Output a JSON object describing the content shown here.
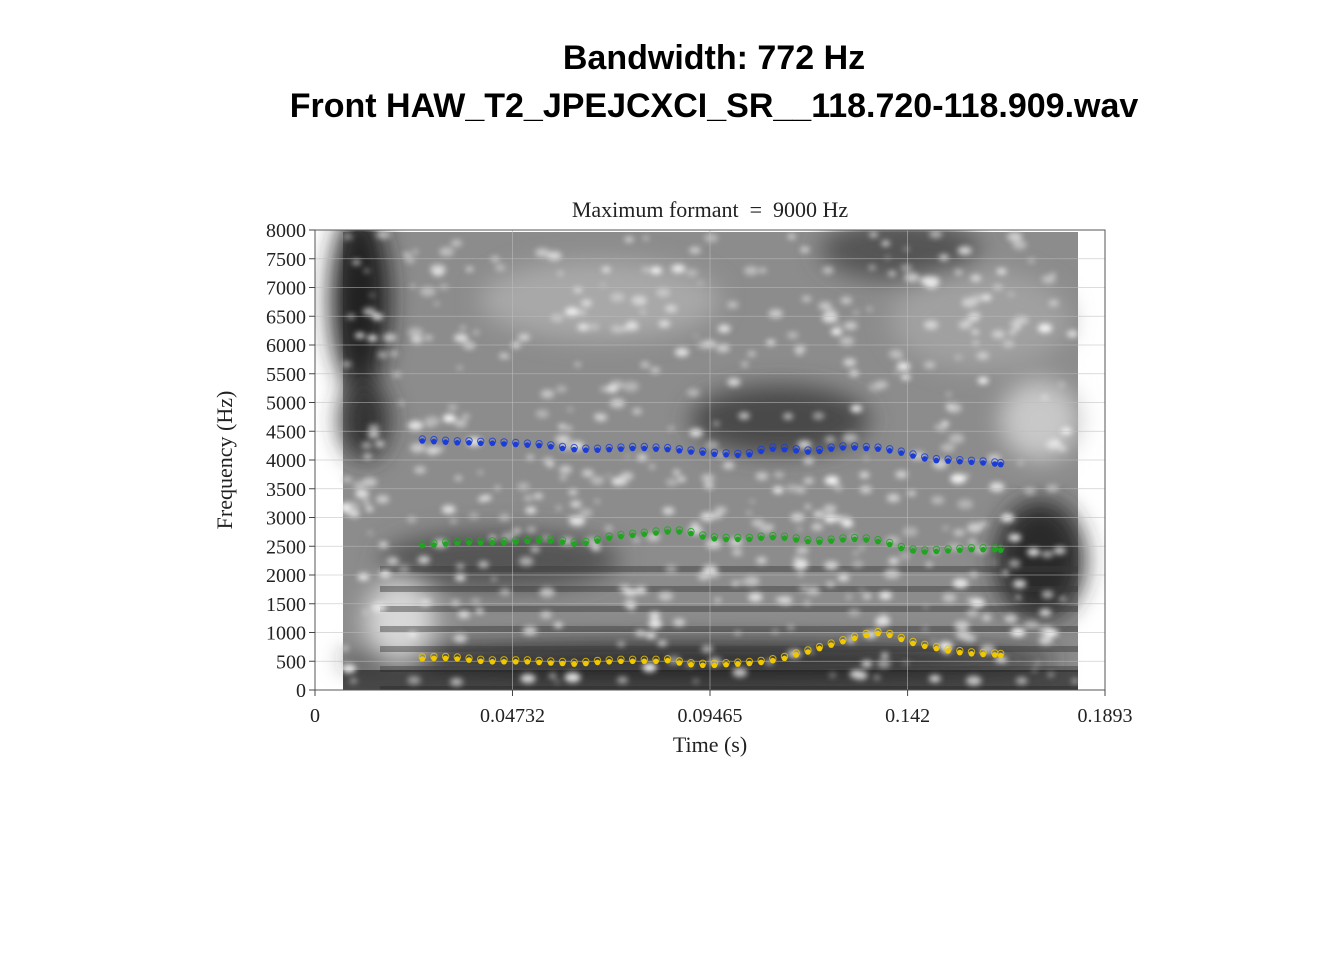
{
  "header": {
    "title_line1": "Bandwidth: 772 Hz",
    "title_line2": "Front HAW_T2_JPEJCXCI_SR__118.720-118.909.wav"
  },
  "chart_data": {
    "type": "scatter",
    "title": "Maximum formant  =  9000 Hz",
    "xlabel": "Time (s)",
    "ylabel": "Frequency (Hz)",
    "xlim": [
      0,
      0.1893
    ],
    "ylim": [
      0,
      8000
    ],
    "xticks": [
      "0",
      "0.04732",
      "0.09465",
      "0.142",
      "0.1893"
    ],
    "xtick_values": [
      0,
      0.04732,
      0.09465,
      0.142,
      0.1893
    ],
    "yticks": [
      "0",
      "500",
      "1000",
      "1500",
      "2000",
      "2500",
      "3000",
      "3500",
      "4000",
      "4500",
      "5000",
      "5500",
      "6000",
      "6500",
      "7000",
      "7500",
      "8000"
    ],
    "grid": true,
    "background": "grayscale spectrogram",
    "series": [
      {
        "color": "#1a3cd8",
        "points": [
          [
            0.0257,
            4330
          ],
          [
            0.0285,
            4320
          ],
          [
            0.0313,
            4310
          ],
          [
            0.0341,
            4300
          ],
          [
            0.0369,
            4300
          ],
          [
            0.0397,
            4290
          ],
          [
            0.0425,
            4290
          ],
          [
            0.0453,
            4280
          ],
          [
            0.0481,
            4270
          ],
          [
            0.0509,
            4260
          ],
          [
            0.0537,
            4250
          ],
          [
            0.0565,
            4230
          ],
          [
            0.0593,
            4200
          ],
          [
            0.0621,
            4180
          ],
          [
            0.0649,
            4170
          ],
          [
            0.0677,
            4170
          ],
          [
            0.0705,
            4180
          ],
          [
            0.0733,
            4190
          ],
          [
            0.0761,
            4200
          ],
          [
            0.0789,
            4200
          ],
          [
            0.0817,
            4190
          ],
          [
            0.0845,
            4180
          ],
          [
            0.0873,
            4160
          ],
          [
            0.0901,
            4140
          ],
          [
            0.0929,
            4120
          ],
          [
            0.0957,
            4100
          ],
          [
            0.0985,
            4090
          ],
          [
            0.1013,
            4080
          ],
          [
            0.1041,
            4090
          ],
          [
            0.1069,
            4150
          ],
          [
            0.1097,
            4190
          ],
          [
            0.1125,
            4180
          ],
          [
            0.1153,
            4160
          ],
          [
            0.1181,
            4140
          ],
          [
            0.1209,
            4150
          ],
          [
            0.1237,
            4190
          ],
          [
            0.1265,
            4210
          ],
          [
            0.1293,
            4210
          ],
          [
            0.1321,
            4200
          ],
          [
            0.1349,
            4190
          ],
          [
            0.1377,
            4160
          ],
          [
            0.1405,
            4120
          ],
          [
            0.1433,
            4070
          ],
          [
            0.1461,
            4020
          ],
          [
            0.1489,
            3990
          ],
          [
            0.1517,
            3980
          ],
          [
            0.1545,
            3970
          ],
          [
            0.1573,
            3960
          ],
          [
            0.1601,
            3950
          ],
          [
            0.1629,
            3930
          ],
          [
            0.1643,
            3920
          ]
        ]
      },
      {
        "color": "#1fa51f",
        "points": [
          [
            0.0257,
            2510
          ],
          [
            0.0285,
            2520
          ],
          [
            0.0313,
            2540
          ],
          [
            0.0341,
            2550
          ],
          [
            0.0369,
            2560
          ],
          [
            0.0397,
            2560
          ],
          [
            0.0425,
            2560
          ],
          [
            0.0453,
            2560
          ],
          [
            0.0481,
            2570
          ],
          [
            0.0509,
            2580
          ],
          [
            0.0537,
            2590
          ],
          [
            0.0565,
            2590
          ],
          [
            0.0593,
            2570
          ],
          [
            0.0621,
            2540
          ],
          [
            0.0649,
            2550
          ],
          [
            0.0677,
            2590
          ],
          [
            0.0705,
            2640
          ],
          [
            0.0733,
            2670
          ],
          [
            0.0761,
            2690
          ],
          [
            0.0789,
            2710
          ],
          [
            0.0817,
            2730
          ],
          [
            0.0845,
            2750
          ],
          [
            0.0873,
            2750
          ],
          [
            0.0901,
            2720
          ],
          [
            0.0929,
            2660
          ],
          [
            0.0957,
            2630
          ],
          [
            0.0985,
            2620
          ],
          [
            0.1013,
            2620
          ],
          [
            0.1041,
            2620
          ],
          [
            0.1069,
            2640
          ],
          [
            0.1097,
            2650
          ],
          [
            0.1125,
            2640
          ],
          [
            0.1153,
            2610
          ],
          [
            0.1181,
            2580
          ],
          [
            0.1209,
            2570
          ],
          [
            0.1237,
            2590
          ],
          [
            0.1265,
            2610
          ],
          [
            0.1293,
            2620
          ],
          [
            0.1321,
            2610
          ],
          [
            0.1349,
            2580
          ],
          [
            0.1377,
            2530
          ],
          [
            0.1405,
            2460
          ],
          [
            0.1433,
            2420
          ],
          [
            0.1461,
            2400
          ],
          [
            0.1489,
            2410
          ],
          [
            0.1517,
            2420
          ],
          [
            0.1545,
            2430
          ],
          [
            0.1573,
            2440
          ],
          [
            0.1601,
            2440
          ],
          [
            0.1629,
            2440
          ],
          [
            0.1643,
            2430
          ]
        ]
      },
      {
        "color": "#f0c800",
        "points": [
          [
            0.0257,
            540
          ],
          [
            0.0285,
            550
          ],
          [
            0.0313,
            550
          ],
          [
            0.0341,
            540
          ],
          [
            0.0369,
            520
          ],
          [
            0.0397,
            500
          ],
          [
            0.0425,
            490
          ],
          [
            0.0453,
            490
          ],
          [
            0.0481,
            490
          ],
          [
            0.0509,
            490
          ],
          [
            0.0537,
            480
          ],
          [
            0.0565,
            470
          ],
          [
            0.0593,
            460
          ],
          [
            0.0621,
            450
          ],
          [
            0.0649,
            460
          ],
          [
            0.0677,
            480
          ],
          [
            0.0705,
            490
          ],
          [
            0.0733,
            500
          ],
          [
            0.0761,
            500
          ],
          [
            0.0789,
            500
          ],
          [
            0.0817,
            500
          ],
          [
            0.0845,
            510
          ],
          [
            0.0873,
            470
          ],
          [
            0.0901,
            440
          ],
          [
            0.0929,
            430
          ],
          [
            0.0957,
            430
          ],
          [
            0.0985,
            440
          ],
          [
            0.1013,
            450
          ],
          [
            0.1041,
            460
          ],
          [
            0.1069,
            480
          ],
          [
            0.1097,
            510
          ],
          [
            0.1125,
            550
          ],
          [
            0.1153,
            610
          ],
          [
            0.1181,
            660
          ],
          [
            0.1209,
            720
          ],
          [
            0.1237,
            780
          ],
          [
            0.1265,
            840
          ],
          [
            0.1293,
            900
          ],
          [
            0.1321,
            950
          ],
          [
            0.1349,
            980
          ],
          [
            0.1377,
            950
          ],
          [
            0.1405,
            880
          ],
          [
            0.1433,
            810
          ],
          [
            0.1461,
            760
          ],
          [
            0.1489,
            720
          ],
          [
            0.1517,
            680
          ],
          [
            0.1545,
            650
          ],
          [
            0.1573,
            630
          ],
          [
            0.1601,
            620
          ],
          [
            0.1629,
            610
          ],
          [
            0.1643,
            600
          ]
        ]
      }
    ]
  }
}
